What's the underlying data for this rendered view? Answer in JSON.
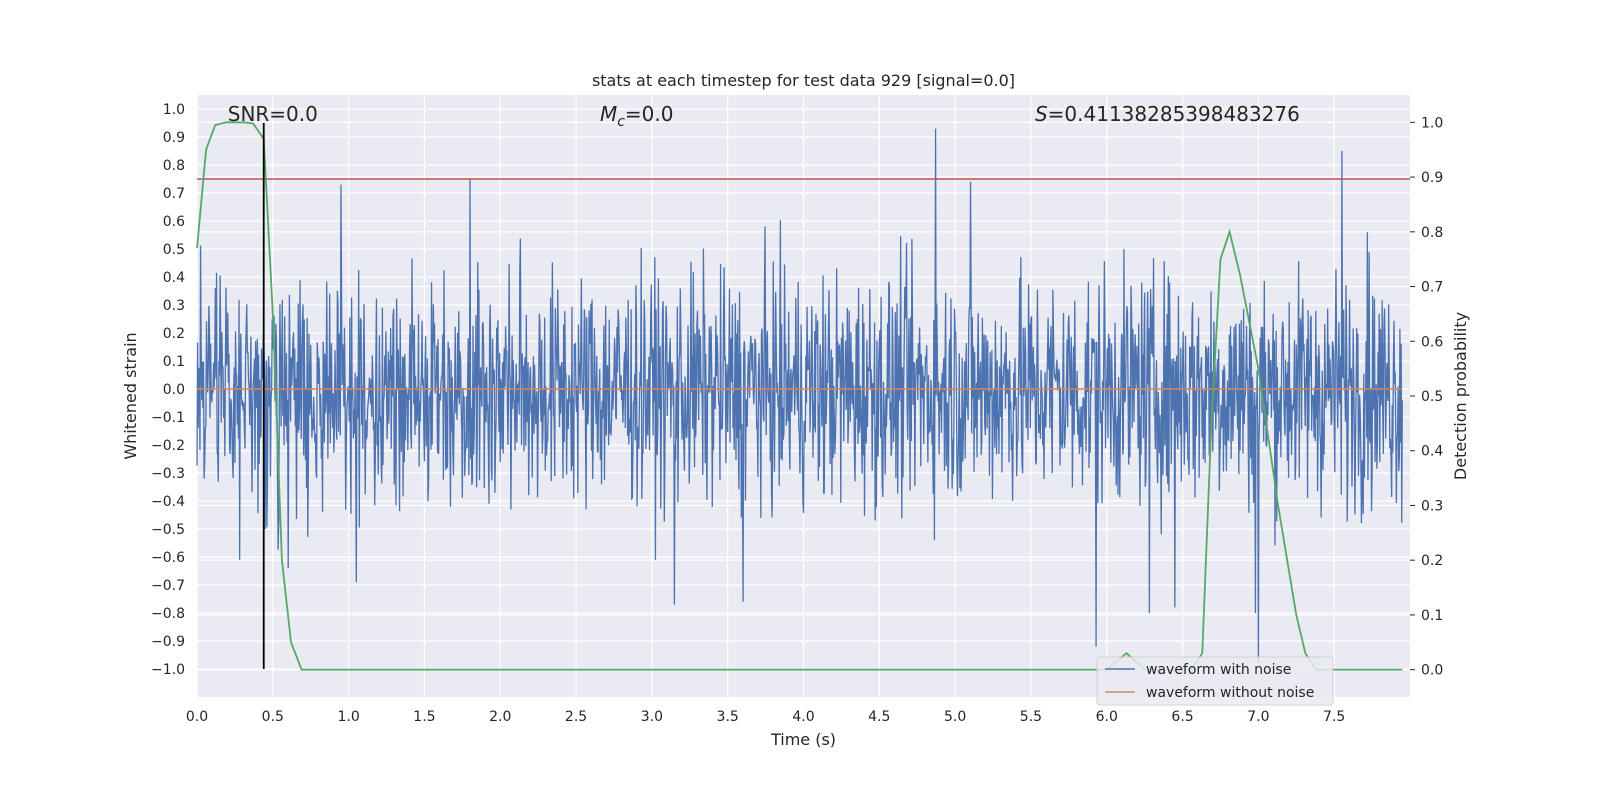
{
  "chart_data": {
    "type": "line",
    "title": "stats at each timestep for test data 929 [signal=0.0]",
    "xlabel": "Time (s)",
    "ylabel": "Whitened strain",
    "ylabel_right": "Detection probability",
    "xlim": [
      0.0,
      8.0
    ],
    "ylim": [
      -1.1,
      1.05
    ],
    "ylim_right": [
      -0.05,
      1.05
    ],
    "x_ticks": [
      0.0,
      0.5,
      1.0,
      1.5,
      2.0,
      2.5,
      3.0,
      3.5,
      4.0,
      4.5,
      5.0,
      5.5,
      6.0,
      6.5,
      7.0,
      7.5
    ],
    "x_tick_labels": [
      "0.0",
      "0.5",
      "1.0",
      "1.5",
      "2.0",
      "2.5",
      "3.0",
      "3.5",
      "4.0",
      "4.5",
      "5.0",
      "5.5",
      "6.0",
      "6.5",
      "7.0",
      "7.5"
    ],
    "y_ticks": [
      -1.0,
      -0.9,
      -0.8,
      -0.7,
      -0.6,
      -0.5,
      -0.4,
      -0.3,
      -0.2,
      -0.1,
      0.0,
      0.1,
      0.2,
      0.3,
      0.4,
      0.5,
      0.6,
      0.7,
      0.8,
      0.9,
      1.0
    ],
    "y_tick_labels": [
      "−1.0",
      "−0.9",
      "−0.8",
      "−0.7",
      "−0.6",
      "−0.5",
      "−0.4",
      "−0.3",
      "−0.2",
      "−0.1",
      "0.0",
      "0.1",
      "0.2",
      "0.3",
      "0.4",
      "0.5",
      "0.6",
      "0.7",
      "0.8",
      "0.9",
      "1.0"
    ],
    "y_right_ticks": [
      0.0,
      0.1,
      0.2,
      0.3,
      0.4,
      0.5,
      0.6,
      0.7,
      0.8,
      0.9,
      1.0
    ],
    "y_right_tick_labels": [
      "0.0",
      "0.1",
      "0.2",
      "0.3",
      "0.4",
      "0.5",
      "0.6",
      "0.7",
      "0.8",
      "0.9",
      "1.0"
    ],
    "grid": true,
    "legend_placement": "lower-right",
    "annotations": {
      "snr": {
        "prefix": "SNR=0.0",
        "x": 0.5
      },
      "mc": {
        "symbol": "M",
        "sub": "c",
        "rest": "=0.0",
        "x": 2.9
      },
      "s": {
        "symbol": "S",
        "rest": "=0.41138285398483276",
        "x": 6.4
      }
    },
    "series": [
      {
        "name": "waveform with noise",
        "color": "#4c72b0",
        "kind": "dense-noise",
        "sample_rate": 256,
        "envelope_typical": 0.28,
        "peaks": [
          {
            "x": 0.45,
            "y": 0.93
          },
          {
            "x": 0.45,
            "y": -0.5
          },
          {
            "x": 0.95,
            "y": 0.73
          },
          {
            "x": 1.8,
            "y": 0.75
          },
          {
            "x": 4.87,
            "y": 0.93
          },
          {
            "x": 5.1,
            "y": 0.74
          },
          {
            "x": 7.55,
            "y": 0.85
          },
          {
            "x": 7.72,
            "y": 0.56
          },
          {
            "x": 3.15,
            "y": -0.77
          },
          {
            "x": 3.6,
            "y": -0.76
          },
          {
            "x": 5.93,
            "y": -0.92
          },
          {
            "x": 6.28,
            "y": -0.8
          },
          {
            "x": 6.45,
            "y": -0.78
          },
          {
            "x": 6.98,
            "y": -0.8
          },
          {
            "x": 7.0,
            "y": -0.98
          },
          {
            "x": 1.05,
            "y": -0.69
          },
          {
            "x": 0.6,
            "y": -0.64
          },
          {
            "x": 0.28,
            "y": -0.61
          }
        ]
      },
      {
        "name": "waveform without noise",
        "color": "#dd8452",
        "x": [
          0.0,
          7.95
        ],
        "y": [
          0.0,
          0.0
        ]
      },
      {
        "name": "",
        "color": "#55a868",
        "axis": "right",
        "x": [
          0.0,
          0.06,
          0.12,
          0.19,
          0.25,
          0.31,
          0.37,
          0.44,
          0.5,
          0.56,
          0.62,
          0.69,
          6.0,
          6.13,
          6.25,
          6.56,
          6.63,
          6.69,
          6.75,
          6.81,
          6.88,
          7.0,
          7.13,
          7.25,
          7.31,
          7.38,
          7.95
        ],
        "y": [
          0.77,
          0.95,
          0.995,
          1.0,
          1.0,
          1.0,
          0.998,
          0.97,
          0.65,
          0.2,
          0.05,
          0.0,
          0.0,
          0.03,
          0.0,
          0.0,
          0.03,
          0.45,
          0.75,
          0.8,
          0.72,
          0.55,
          0.3,
          0.1,
          0.03,
          0.0,
          0.0
        ]
      }
    ],
    "horizontal_line": {
      "y": 0.75,
      "color": "#c44e52"
    },
    "vertical_line": {
      "x": 0.44,
      "ymin": -1.0,
      "ymax": 0.95,
      "color": "#000000"
    }
  }
}
